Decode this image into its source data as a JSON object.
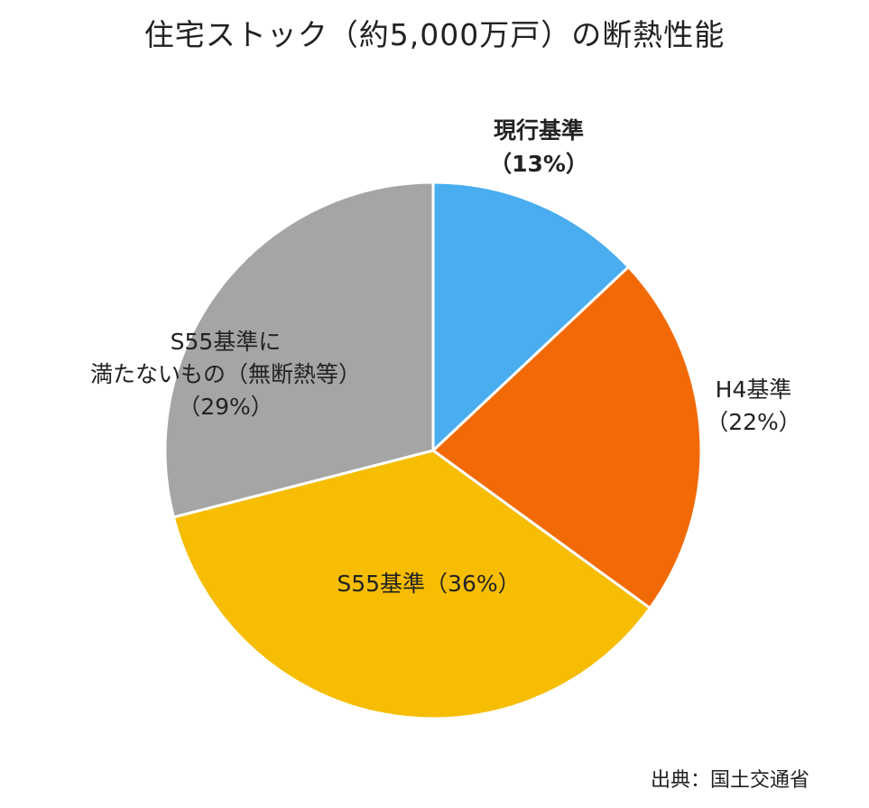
{
  "chart_data": {
    "type": "pie",
    "title": "住宅ストック（約5,000万戸）の断熱性能",
    "slices": [
      {
        "label_lines": [
          "現行基準",
          "（13%）"
        ],
        "value": 13,
        "color": "#49adf0"
      },
      {
        "label_lines": [
          "H4基準",
          "（22%）"
        ],
        "value": 22,
        "color": "#f26a06"
      },
      {
        "label_lines": [
          "S55基準（36%）"
        ],
        "value": 36,
        "color": "#f6bd02"
      },
      {
        "label_lines": [
          "S55基準に",
          "満たないもの（無断熱等）",
          "（29%）"
        ],
        "value": 29,
        "color": "#a5a5a5"
      }
    ],
    "start_angle_deg": 0,
    "direction": "clockwise",
    "legend": "none",
    "source": "出典：国土交通省"
  }
}
